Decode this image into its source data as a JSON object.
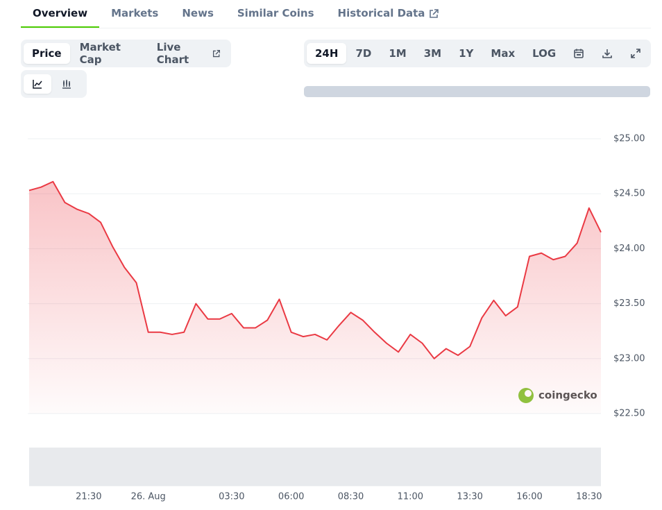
{
  "tabs": [
    "Overview",
    "Markets",
    "News",
    "Similar Coins",
    "Historical Data"
  ],
  "chart_modes": [
    "Price",
    "Market Cap",
    "Live Chart"
  ],
  "ranges": [
    "24H",
    "7D",
    "1M",
    "3M",
    "1Y",
    "Max",
    "LOG"
  ],
  "watermark": "coingecko",
  "chart_data": {
    "type": "line",
    "color": "#ea3943",
    "categories": [
      null,
      null,
      null,
      null,
      null,
      "21:30",
      null,
      null,
      null,
      null,
      "26. Aug",
      null,
      null,
      null,
      null,
      null,
      null,
      "03:30",
      null,
      null,
      null,
      null,
      "06:00",
      null,
      null,
      null,
      null,
      "08:30",
      null,
      null,
      null,
      null,
      "11:00",
      null,
      null,
      null,
      null,
      "13:30",
      null,
      null,
      null,
      null,
      "16:00",
      null,
      null,
      null,
      null,
      "18:30",
      null
    ],
    "values": [
      24.53,
      24.56,
      24.61,
      24.42,
      24.36,
      24.32,
      24.24,
      24.02,
      23.83,
      23.69,
      23.24,
      23.24,
      23.22,
      23.24,
      23.5,
      23.36,
      23.36,
      23.41,
      23.28,
      23.28,
      23.35,
      23.54,
      23.24,
      23.2,
      23.22,
      23.17,
      23.3,
      23.42,
      23.35,
      23.24,
      23.14,
      23.06,
      23.22,
      23.14,
      23.0,
      23.09,
      23.03,
      23.11,
      23.37,
      23.53,
      23.39,
      23.47,
      23.93,
      23.96,
      23.9,
      23.93,
      24.05,
      24.37,
      24.15
    ],
    "ylim": [
      22.5,
      25
    ],
    "yticks": [
      {
        "value": 22.5,
        "label": "$22.50"
      },
      {
        "value": 23,
        "label": "$23.00"
      },
      {
        "value": 23.5,
        "label": "$23.50"
      },
      {
        "value": 24,
        "label": "$24.00"
      },
      {
        "value": 24.5,
        "label": "$24.50"
      },
      {
        "value": 25,
        "label": "$25.00"
      }
    ],
    "grid": true
  }
}
